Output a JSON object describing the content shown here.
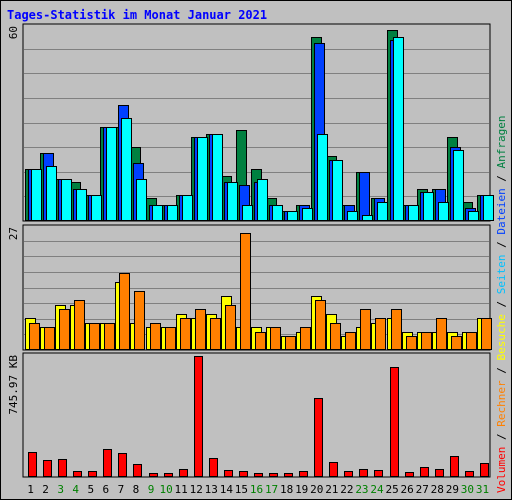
{
  "title": "Tages-Statistik im Monat Januar 2021",
  "legend": [
    {
      "label": "Volumen",
      "color": "#ff0000"
    },
    {
      "label": "Rechner",
      "color": "#ff8000"
    },
    {
      "label": "Besuche",
      "color": "#ffff00"
    },
    {
      "label": "Seiten",
      "color": "#00c0ff"
    },
    {
      "label": "Dateien",
      "color": "#0040ff"
    },
    {
      "label": "Anfragen",
      "color": "#008040"
    }
  ],
  "legend_separator": " / ",
  "colors": {
    "background": "#c0c0c0",
    "plot_background": "#c0c0c0",
    "grid": "#808080",
    "anfragen": "#008040",
    "dateien": "#0040ff",
    "seiten": "#00ffff",
    "besuche": "#ffff00",
    "rechner": "#ff8000",
    "volumen": "#ff0000",
    "weekday_label": "#000000",
    "weekend_label": "#008000"
  },
  "chart_data": [
    {
      "type": "bar",
      "name": "top",
      "axis_label": "60",
      "ylim": [
        0,
        60
      ],
      "grid": true,
      "categories": [
        "1",
        "2",
        "3",
        "4",
        "5",
        "6",
        "7",
        "8",
        "9",
        "10",
        "11",
        "12",
        "13",
        "14",
        "15",
        "16",
        "17",
        "18",
        "19",
        "20",
        "21",
        "22",
        "23",
        "24",
        "25",
        "26",
        "27",
        "28",
        "29",
        "30",
        "31"
      ],
      "weekend": [
        false,
        false,
        true,
        true,
        false,
        false,
        false,
        false,
        true,
        true,
        false,
        false,
        false,
        false,
        false,
        true,
        true,
        false,
        false,
        false,
        false,
        false,
        true,
        true,
        false,
        false,
        false,
        false,
        false,
        true,
        true
      ],
      "series": [
        {
          "name": "Anfragen",
          "values": [
            16,
            21,
            13,
            12,
            8,
            29,
            29,
            23,
            7,
            5,
            8,
            26,
            27,
            14,
            28,
            16,
            7,
            3,
            5,
            57,
            20,
            5,
            15,
            7,
            59,
            5,
            10,
            10,
            26,
            6,
            8
          ]
        },
        {
          "name": "Dateien",
          "values": [
            16,
            21,
            13,
            10,
            8,
            29,
            36,
            18,
            5,
            5,
            8,
            26,
            27,
            12,
            11,
            12,
            5,
            3,
            5,
            55,
            19,
            5,
            15,
            7,
            56,
            5,
            9,
            10,
            23,
            4,
            8
          ]
        },
        {
          "name": "Seiten",
          "values": [
            16,
            17,
            13,
            10,
            8,
            29,
            32,
            13,
            5,
            5,
            8,
            26,
            27,
            12,
            5,
            13,
            5,
            3,
            4,
            27,
            19,
            3,
            2,
            6,
            57,
            5,
            9,
            6,
            22,
            3,
            8
          ]
        }
      ]
    },
    {
      "type": "bar",
      "name": "middle",
      "axis_label": "27",
      "ylim": [
        0,
        27
      ],
      "grid": true,
      "categories": [
        "1",
        "2",
        "3",
        "4",
        "5",
        "6",
        "7",
        "8",
        "9",
        "10",
        "11",
        "12",
        "13",
        "14",
        "15",
        "16",
        "17",
        "18",
        "19",
        "20",
        "21",
        "22",
        "23",
        "24",
        "25",
        "26",
        "27",
        "28",
        "29",
        "30",
        "31"
      ],
      "series": [
        {
          "name": "Besuche",
          "values": [
            7,
            5,
            10,
            10,
            6,
            6,
            15,
            6,
            5,
            5,
            8,
            7,
            8,
            12,
            5,
            5,
            5,
            3,
            4,
            12,
            8,
            3,
            5,
            6,
            7,
            4,
            4,
            4,
            4,
            4,
            7
          ]
        },
        {
          "name": "Rechner",
          "values": [
            6,
            5,
            9,
            11,
            6,
            6,
            17,
            13,
            6,
            5,
            7,
            9,
            7,
            10,
            26,
            4,
            5,
            3,
            5,
            11,
            6,
            4,
            9,
            7,
            9,
            3,
            4,
            7,
            3,
            4,
            7
          ]
        }
      ]
    },
    {
      "type": "bar",
      "name": "bottom",
      "axis_label": "745.97 KB",
      "ylim": [
        0,
        745.97
      ],
      "grid": false,
      "categories": [
        "1",
        "2",
        "3",
        "4",
        "5",
        "6",
        "7",
        "8",
        "9",
        "10",
        "11",
        "12",
        "13",
        "14",
        "15",
        "16",
        "17",
        "18",
        "19",
        "20",
        "21",
        "22",
        "23",
        "24",
        "25",
        "26",
        "27",
        "28",
        "29",
        "30",
        "31"
      ],
      "series": [
        {
          "name": "Volumen",
          "values": [
            157,
            102,
            110,
            40,
            35,
            170,
            150,
            80,
            22,
            22,
            48,
            746,
            120,
            45,
            35,
            25,
            25,
            22,
            35,
            485,
            90,
            40,
            50,
            45,
            680,
            30,
            60,
            50,
            130,
            40,
            85
          ]
        }
      ]
    }
  ]
}
